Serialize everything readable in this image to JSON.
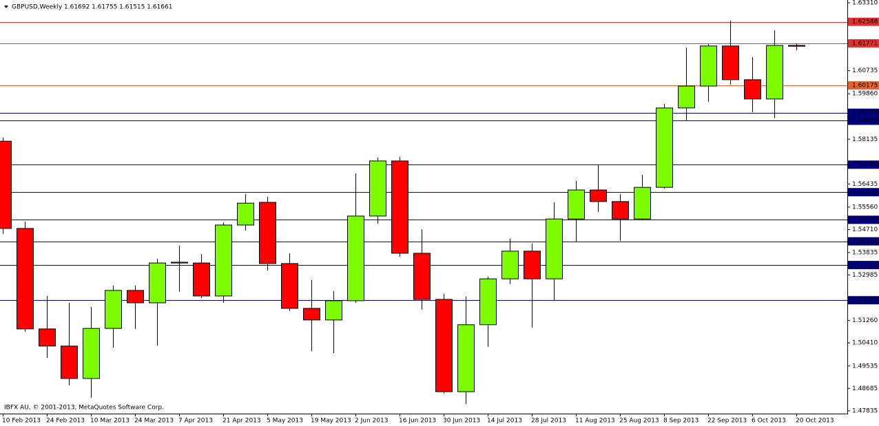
{
  "chart_data": {
    "type": "candlestick",
    "title": "GBPUSD,Weekly  1.61692 1.61755 1.61515 1.61661",
    "footer": "IBFX AU, © 2001-2013, MetaQuotes Software Corp.",
    "categories": [
      "10 Feb 2013",
      null,
      "24 Feb 2013",
      null,
      "10 Mar 2013",
      null,
      "24 Mar 2013",
      null,
      "7 Apr 2013",
      null,
      "21 Apr 2013",
      null,
      "5 May 2013",
      null,
      "19 May 2013",
      null,
      "2 Jun 2013",
      null,
      "16 Jun 2013",
      null,
      "30 Jun 2013",
      null,
      "14 Jul 2013",
      null,
      "28 Jul 2013",
      null,
      "11 Aug 2013",
      null,
      "25 Aug 2013",
      null,
      "8 Sep 2013",
      null,
      "22 Sep 2013",
      null,
      "6 Oct 2013",
      null,
      "20 Oct 2013"
    ],
    "open": [
      1.5806,
      1.5475,
      1.5094,
      1.5029,
      1.4906,
      1.5096,
      1.524,
      1.5193,
      1.5344,
      1.5344,
      1.5219,
      1.5488,
      1.5574,
      1.5342,
      1.5172,
      1.5128,
      1.5201,
      1.5522,
      1.5731,
      1.5381,
      1.5206,
      1.4856,
      1.511,
      1.5284,
      1.5389,
      1.5284,
      1.5511,
      1.5621,
      1.5577,
      1.5511,
      1.5631,
      1.5932,
      1.6015,
      1.6167,
      1.6039,
      1.5966,
      1.61692
    ],
    "high": [
      1.582,
      1.5501,
      1.5219,
      1.5193,
      1.5177,
      1.5258,
      1.5258,
      1.536,
      1.541,
      1.5378,
      1.5498,
      1.5605,
      1.5595,
      1.5381,
      1.5279,
      1.5237,
      1.5684,
      1.5744,
      1.5746,
      1.5472,
      1.5227,
      1.5217,
      1.5292,
      1.5436,
      1.5418,
      1.5574,
      1.5655,
      1.5715,
      1.5605,
      1.5678,
      1.5947,
      1.6161,
      1.6174,
      1.6263,
      1.6125,
      1.6227,
      1.61755
    ],
    "low": [
      1.5454,
      1.5083,
      1.4984,
      1.488,
      1.4833,
      1.5023,
      1.5094,
      1.5031,
      1.5235,
      1.5211,
      1.5193,
      1.5467,
      1.5316,
      1.5162,
      1.501,
      1.5002,
      1.5193,
      1.5493,
      1.5368,
      1.5167,
      1.4849,
      1.4809,
      1.5026,
      1.5264,
      1.5099,
      1.5201,
      1.5423,
      1.5538,
      1.5428,
      1.5506,
      1.5626,
      1.5882,
      1.5955,
      1.602,
      1.5916,
      1.5893,
      1.61515
    ],
    "close": [
      1.5475,
      1.5094,
      1.5029,
      1.4906,
      1.5096,
      1.524,
      1.5193,
      1.5344,
      1.5347,
      1.5219,
      1.5488,
      1.5571,
      1.5342,
      1.5172,
      1.5128,
      1.5201,
      1.5522,
      1.5731,
      1.5381,
      1.5206,
      1.4856,
      1.511,
      1.5284,
      1.5389,
      1.5284,
      1.5511,
      1.5621,
      1.5577,
      1.5511,
      1.5631,
      1.5932,
      1.6015,
      1.6167,
      1.6039,
      1.5966,
      1.6169,
      1.61661
    ],
    "up_color": "#7cfc00",
    "down_color": "#ff0000",
    "ylim": [
      1.47728,
      1.63414
    ],
    "yticks": [
      {
        "value": 1.6331,
        "label": "1.63310"
      },
      1.60735,
      {
        "value": 1.5986,
        "label": "1.59860"
      },
      1.58135,
      1.56435,
      {
        "value": 1.5556,
        "label": "1.55560"
      },
      {
        "value": 1.5471,
        "label": "1.54710"
      },
      1.53835,
      1.52985,
      {
        "value": 1.5126,
        "label": "1.51260"
      },
      {
        "value": 1.5041,
        "label": "1.50410"
      },
      1.49535,
      1.48685,
      1.47835
    ],
    "levels": [
      {
        "value": 1.62588,
        "color": "#e03030"
      },
      {
        "value": 1.61771,
        "color": "#e03030"
      },
      {
        "value": 1.60175,
        "color": "#e8622a"
      },
      {
        "value": 1.59138,
        "color": "#000080"
      },
      {
        "value": 1.58835,
        "color": "#000080"
      },
      {
        "value": 1.57169,
        "color": "#000080"
      },
      {
        "value": 1.56126,
        "color": "#000080"
      },
      {
        "value": 1.55078,
        "color": "#000080"
      },
      {
        "value": 1.54262,
        "color": "#000080"
      },
      {
        "value": 1.53363,
        "color": "#000080"
      },
      {
        "value": 1.52028,
        "color": "#000080"
      }
    ]
  }
}
